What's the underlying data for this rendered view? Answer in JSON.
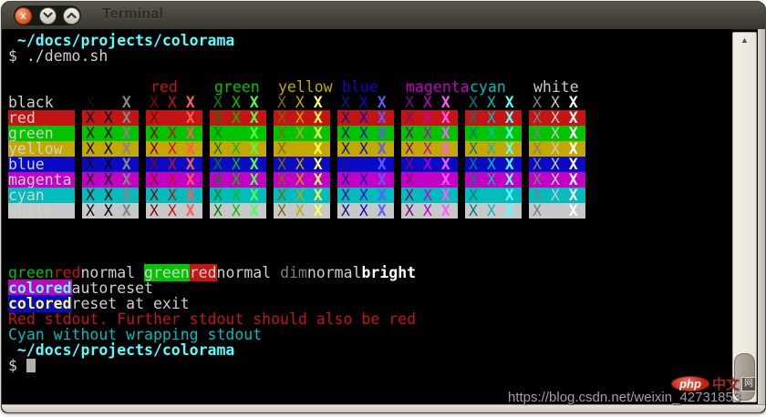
{
  "window": {
    "title": "Terminal",
    "buttons": {
      "close_glyph": "x"
    }
  },
  "colors": {
    "default": "#d0d0ca",
    "dim_default": "#7f7f7a",
    "terminal_bg": "#000000",
    "cursor": "#b2b2ac",
    "palette": {
      "black": {
        "normal": "#000000",
        "dim": "#101010",
        "bright": "#868686"
      },
      "red": {
        "normal": "#c41414",
        "dim": "#7c0808",
        "bright": "#ff5d50"
      },
      "green": {
        "normal": "#00c400",
        "dim": "#0a7c0a",
        "bright": "#4cff4c"
      },
      "yellow": {
        "normal": "#c4a800",
        "dim": "#7c6a00",
        "bright": "#ffff55"
      },
      "blue": {
        "normal": "#0a0ac4",
        "dim": "#16167c",
        "bright": "#5c5cff"
      },
      "magenta": {
        "normal": "#c400c4",
        "dim": "#7c0a7c",
        "bright": "#ff5cff"
      },
      "cyan": {
        "normal": "#00bcbc",
        "dim": "#0a7878",
        "bright": "#55ffff"
      },
      "white": {
        "normal": "#c8c8c8",
        "dim": "#7e7e7e",
        "bright": "#ffffff"
      }
    }
  },
  "terminal": {
    "table": {
      "glyph": "X",
      "variants": [
        "dim",
        "normal",
        "bright"
      ],
      "columns": [
        "black",
        "red",
        "green",
        "yellow",
        "blue",
        "magenta",
        "cyan",
        "white"
      ],
      "header_columns": [
        "red",
        "green",
        "yellow",
        "blue",
        "magenta",
        "cyan",
        "white"
      ],
      "rows": [
        "black",
        "red",
        "green",
        "yellow",
        "blue",
        "magenta",
        "cyan",
        "white"
      ]
    },
    "screen": [
      {
        "type": "text",
        "segs": [
          {
            "t": " ~/docs/projects/colorama",
            "fg": "cyan.bright",
            "bold": true
          }
        ]
      },
      {
        "type": "text",
        "segs": [
          {
            "t": "$ ./demo.sh",
            "fg": "default"
          }
        ]
      },
      {
        "type": "blank"
      },
      {
        "type": "table-header"
      },
      {
        "type": "table-rows"
      },
      {
        "type": "blank"
      },
      {
        "type": "blank"
      },
      {
        "type": "blank"
      },
      {
        "type": "text",
        "segs": [
          {
            "t": "green",
            "fg": "green.normal"
          },
          {
            "t": "red",
            "fg": "red.normal"
          },
          {
            "t": "normal",
            "fg": "default"
          },
          {
            "t": " "
          },
          {
            "t": "green",
            "fg": "default",
            "bg": "green.normal"
          },
          {
            "t": "red",
            "fg": "default",
            "bg": "red.normal"
          },
          {
            "t": "normal",
            "fg": "default"
          },
          {
            "t": " "
          },
          {
            "t": "dim",
            "fg": "dim"
          },
          {
            "t": "normal",
            "fg": "default"
          },
          {
            "t": "bright",
            "fg": "white.bright",
            "bold": true
          }
        ]
      },
      {
        "type": "text",
        "segs": [
          {
            "t": "colored",
            "fg": "cyan.bright",
            "bg": "magenta.normal",
            "bold": true
          },
          {
            "t": "autoreset",
            "fg": "default"
          }
        ]
      },
      {
        "type": "text",
        "segs": [
          {
            "t": "colored",
            "fg": "yellow.bright",
            "bg": "blue.normal",
            "bold": true
          },
          {
            "t": "reset at exit",
            "fg": "default"
          }
        ]
      },
      {
        "type": "text",
        "segs": [
          {
            "t": "Red stdout. Further stdout should also be red",
            "fg": "red.normal"
          }
        ]
      },
      {
        "type": "text",
        "segs": [
          {
            "t": "Cyan without wrapping stdout",
            "fg": "cyan.normal"
          }
        ]
      },
      {
        "type": "text",
        "segs": [
          {
            "t": " ~/docs/projects/colorama",
            "fg": "cyan.bright",
            "bold": true
          }
        ]
      },
      {
        "type": "text",
        "segs": [
          {
            "t": "$ ",
            "fg": "default"
          },
          {
            "cursor": true
          }
        ]
      }
    ]
  },
  "scrollbar": {
    "up_arrow": "▲"
  },
  "watermark": {
    "logo_php": "php",
    "logo_cn": "中文",
    "logo_box": "网",
    "url": "https://blog.csdn.net/weixin_42731853"
  }
}
